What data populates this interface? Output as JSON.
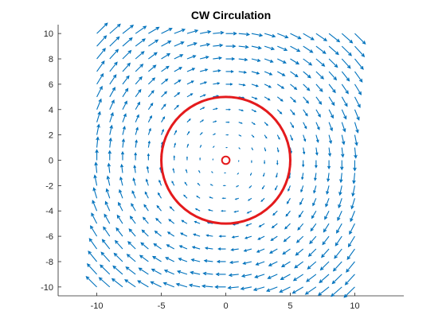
{
  "chart_data": {
    "type": "quiver",
    "title": "CW Circulation",
    "xlabel": "",
    "ylabel": "",
    "xlim": [
      -13,
      13.8
    ],
    "ylim": [
      -10.7,
      10.7
    ],
    "xticks": [
      -10,
      -5,
      0,
      5,
      10
    ],
    "yticks": [
      -10,
      -8,
      -6,
      -4,
      -2,
      0,
      2,
      4,
      6,
      8,
      10
    ],
    "grid": false,
    "field": {
      "description": "clockwise vector field u = y, v = -x",
      "x_range": [
        -10,
        10
      ],
      "y_range": [
        -10,
        10
      ],
      "step": 1,
      "u_expr": "y",
      "v_expr": "-x"
    },
    "circles": [
      {
        "name": "",
        "center": [
          0,
          0
        ],
        "radius": 5,
        "color": "#E41A1C"
      },
      {
        "name": "",
        "center": [
          0,
          0
        ],
        "radius": 0.3,
        "color": "#E41A1C"
      }
    ],
    "colors": {
      "arrows": "#0072BD",
      "circles": "#E41A1C",
      "axes": "#262626"
    }
  }
}
